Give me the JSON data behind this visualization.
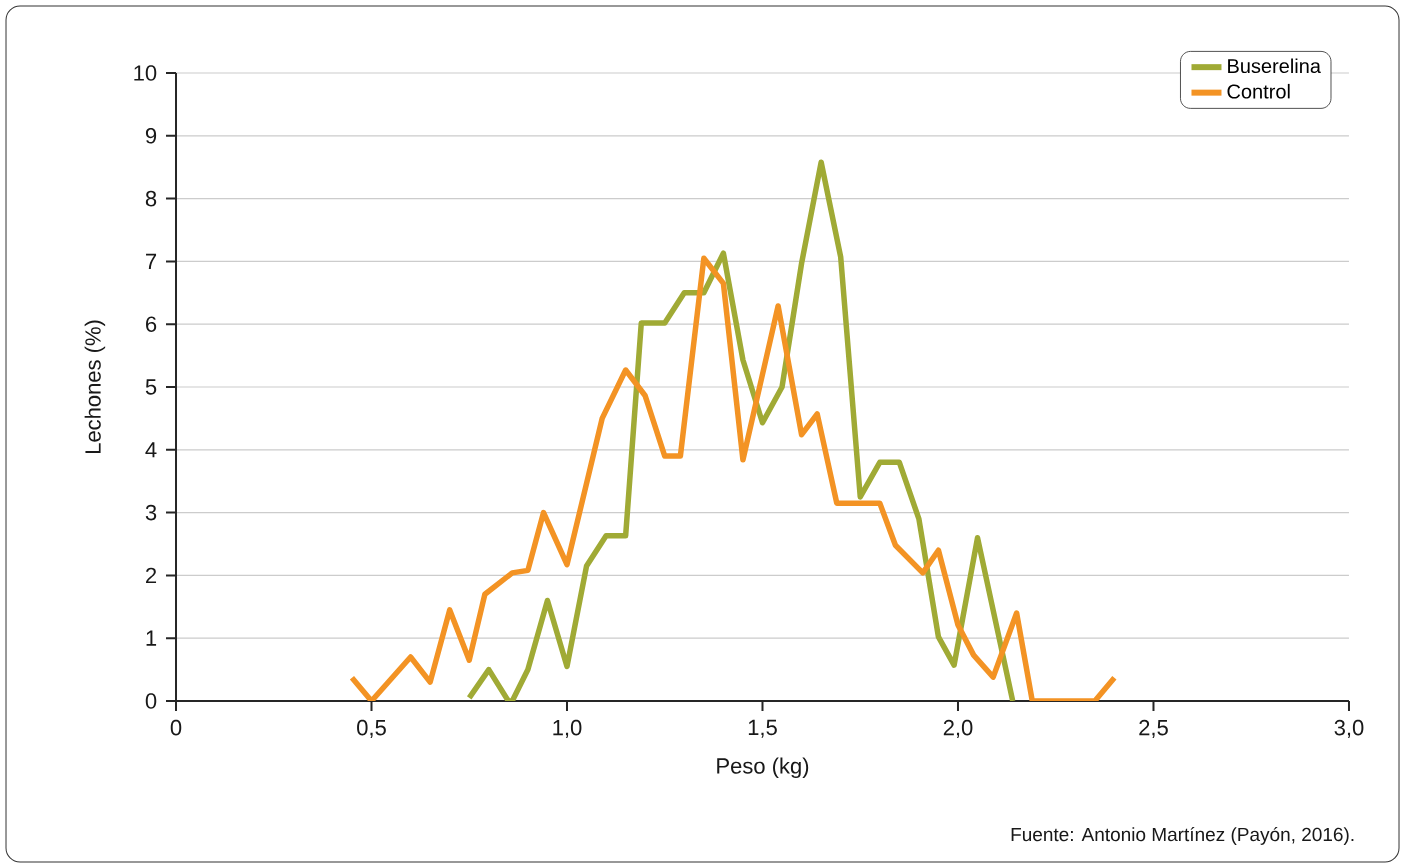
{
  "chart_data": {
    "type": "line",
    "xlabel": "Peso (kg)",
    "ylabel": "Lechones (%)",
    "annotations": [
      "Fuente: Antonio Martínez (Payón, 2016)."
    ],
    "xlim": [
      0,
      3
    ],
    "ylim": [
      0,
      10
    ],
    "xticks": [
      0,
      {
        "value": 0.5,
        "label": "0,5"
      },
      {
        "value": 1.0,
        "label": "1,0"
      },
      {
        "value": 1.5,
        "label": "1,5"
      },
      {
        "value": 2.0,
        "label": "2,0"
      },
      {
        "value": 2.5,
        "label": "2,5"
      },
      {
        "value": 3.0,
        "label": "3,0"
      }
    ],
    "yticks": [
      0,
      1,
      2,
      3,
      4,
      5,
      6,
      7,
      8,
      9,
      10
    ],
    "grid": "y",
    "legend": "top right",
    "line_style": "solid",
    "marker": "none",
    "series": [
      {
        "name": "Buserelina",
        "color": "#a0aa35",
        "x": [
          0.75,
          0.8,
          0.85,
          0.86,
          0.9,
          0.95,
          1.0,
          1.05,
          1.1,
          1.15,
          1.19,
          1.25,
          1.3,
          1.35,
          1.4,
          1.45,
          1.5,
          1.55,
          1.6,
          1.65,
          1.7,
          1.75,
          1.8,
          1.85,
          1.9,
          1.95,
          1.99,
          2.05,
          2.14
        ],
        "values": [
          0.05,
          0.5,
          0,
          0,
          0.5,
          1.6,
          0.55,
          2.15,
          2.63,
          2.63,
          6.02,
          6.02,
          6.5,
          6.5,
          7.13,
          5.43,
          4.43,
          5.0,
          6.97,
          8.58,
          7.07,
          3.25,
          3.8,
          3.8,
          2.9,
          1.02,
          0.57,
          2.6,
          0
        ]
      },
      {
        "name": "Control",
        "color": "#f39324",
        "x": [
          0.45,
          0.5,
          0.6,
          0.65,
          0.7,
          0.75,
          0.79,
          0.86,
          0.9,
          0.94,
          1.0,
          1.09,
          1.15,
          1.2,
          1.25,
          1.29,
          1.35,
          1.4,
          1.45,
          1.54,
          1.6,
          1.64,
          1.69,
          1.8,
          1.84,
          1.91,
          1.95,
          2.0,
          2.04,
          2.09,
          2.15,
          2.19,
          2.35,
          2.4
        ],
        "values": [
          0.37,
          0,
          0.7,
          0.3,
          1.45,
          0.65,
          1.7,
          2.04,
          2.08,
          3.0,
          2.17,
          4.5,
          5.27,
          4.86,
          3.9,
          3.9,
          7.05,
          6.65,
          3.84,
          6.29,
          4.24,
          4.57,
          3.15,
          3.15,
          2.48,
          2.04,
          2.4,
          1.21,
          0.73,
          0.38,
          1.4,
          0,
          0,
          0.37
        ]
      }
    ]
  }
}
